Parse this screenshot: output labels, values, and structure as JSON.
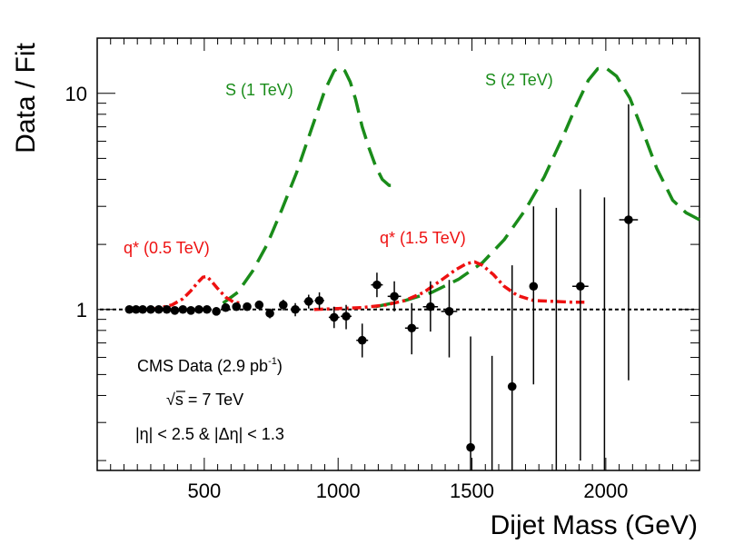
{
  "chart_data": {
    "type": "scatter",
    "ylabel": "Data / Fit",
    "xlabel": "Dijet Mass (GeV)",
    "xlim": [
      100,
      2350
    ],
    "ylim": [
      0.18,
      18
    ],
    "yscale": "log",
    "x_ticks": [
      500,
      1000,
      1500,
      2000
    ],
    "x_tick_labels": [
      "500",
      "1000",
      "1500",
      "2000"
    ],
    "y_ticks": [
      1,
      10
    ],
    "y_tick_labels": [
      "1",
      "10"
    ],
    "reference_line": 1,
    "info": {
      "line1_main": "CMS Data (2.9 pb",
      "line1_sup": "-1",
      "line1_end": ")",
      "line2_root": "√",
      "line2": "s = 7 TeV",
      "line3": "|η| < 2.5 & |Δη| < 1.3"
    },
    "data_points": [
      {
        "x": 220,
        "y": 1.0,
        "ylo": 0.99,
        "yhi": 1.01,
        "xerr": 0
      },
      {
        "x": 245,
        "y": 1.0,
        "ylo": 0.99,
        "yhi": 1.01,
        "xerr": 0
      },
      {
        "x": 270,
        "y": 1.0,
        "ylo": 0.99,
        "yhi": 1.01,
        "xerr": 0
      },
      {
        "x": 300,
        "y": 1.0,
        "ylo": 0.99,
        "yhi": 1.01,
        "xerr": 0
      },
      {
        "x": 330,
        "y": 1.0,
        "ylo": 0.99,
        "yhi": 1.01,
        "xerr": 0
      },
      {
        "x": 360,
        "y": 1.0,
        "ylo": 0.985,
        "yhi": 1.015,
        "xerr": 0
      },
      {
        "x": 390,
        "y": 0.99,
        "ylo": 0.975,
        "yhi": 1.005,
        "xerr": 0
      },
      {
        "x": 420,
        "y": 1.0,
        "ylo": 0.98,
        "yhi": 1.02,
        "xerr": 0
      },
      {
        "x": 450,
        "y": 0.99,
        "ylo": 0.97,
        "yhi": 1.01,
        "xerr": 0
      },
      {
        "x": 480,
        "y": 1.0,
        "ylo": 0.98,
        "yhi": 1.02,
        "xerr": 0
      },
      {
        "x": 510,
        "y": 1.0,
        "ylo": 0.98,
        "yhi": 1.02,
        "xerr": 0
      },
      {
        "x": 545,
        "y": 0.98,
        "ylo": 0.96,
        "yhi": 1.0,
        "xerr": 0
      },
      {
        "x": 580,
        "y": 1.02,
        "ylo": 0.99,
        "yhi": 1.05,
        "xerr": 0
      },
      {
        "x": 620,
        "y": 1.03,
        "ylo": 1.0,
        "yhi": 1.06,
        "xerr": 0
      },
      {
        "x": 660,
        "y": 1.03,
        "ylo": 0.99,
        "yhi": 1.07,
        "xerr": 0
      },
      {
        "x": 705,
        "y": 1.05,
        "ylo": 1.0,
        "yhi": 1.1,
        "xerr": 15
      },
      {
        "x": 745,
        "y": 0.96,
        "ylo": 0.91,
        "yhi": 1.01,
        "xerr": 15
      },
      {
        "x": 795,
        "y": 1.05,
        "ylo": 0.99,
        "yhi": 1.11,
        "xerr": 15
      },
      {
        "x": 840,
        "y": 1.0,
        "ylo": 0.93,
        "yhi": 1.07,
        "xerr": 15
      },
      {
        "x": 890,
        "y": 1.09,
        "ylo": 1.01,
        "yhi": 1.17,
        "xerr": 18
      },
      {
        "x": 930,
        "y": 1.1,
        "ylo": 1.0,
        "yhi": 1.2,
        "xerr": 18
      },
      {
        "x": 985,
        "y": 0.92,
        "ylo": 0.82,
        "yhi": 1.03,
        "xerr": 20
      },
      {
        "x": 1030,
        "y": 0.93,
        "ylo": 0.81,
        "yhi": 1.05,
        "xerr": 20
      },
      {
        "x": 1090,
        "y": 0.72,
        "ylo": 0.6,
        "yhi": 0.86,
        "xerr": 22
      },
      {
        "x": 1145,
        "y": 1.3,
        "ylo": 1.14,
        "yhi": 1.48,
        "xerr": 22
      },
      {
        "x": 1210,
        "y": 1.15,
        "ylo": 0.98,
        "yhi": 1.35,
        "xerr": 25
      },
      {
        "x": 1275,
        "y": 0.82,
        "ylo": 0.62,
        "yhi": 1.07,
        "xerr": 25
      },
      {
        "x": 1345,
        "y": 1.03,
        "ylo": 0.79,
        "yhi": 1.35,
        "xerr": 28
      },
      {
        "x": 1415,
        "y": 0.98,
        "ylo": 0.6,
        "yhi": 1.37,
        "xerr": 30
      },
      {
        "x": 1495,
        "y": 0.23,
        "ylo": 0.1,
        "yhi": 0.75,
        "xerr": 0
      },
      {
        "x": 1575,
        "y": 0.1,
        "ylo": 0.05,
        "yhi": 0.61,
        "xerr": 0
      },
      {
        "x": 1650,
        "y": 0.44,
        "ylo": 0.1,
        "yhi": 1.6,
        "xerr": 0
      },
      {
        "x": 1730,
        "y": 1.28,
        "ylo": 0.45,
        "yhi": 3.0,
        "xerr": 0
      },
      {
        "x": 1815,
        "y": 0.12,
        "ylo": 0.05,
        "yhi": 2.95,
        "xerr": 0
      },
      {
        "x": 1905,
        "y": 1.28,
        "ylo": 0.2,
        "yhi": 3.6,
        "xerr": 30
      },
      {
        "x": 1995,
        "y": 0.12,
        "ylo": 0.05,
        "yhi": 3.3,
        "xerr": 0
      },
      {
        "x": 2085,
        "y": 2.6,
        "ylo": 0.47,
        "yhi": 8.9,
        "xerr": 35
      }
    ],
    "signal_curves": [
      {
        "name": "S (1 TeV)",
        "color": "#1a8c1a",
        "dash": "20,10",
        "x": [
          570,
          625,
          680,
          735,
          790,
          845,
          900,
          950,
          985,
          1005,
          1025,
          1045,
          1065,
          1090,
          1115,
          1140,
          1165,
          1190,
          1210
        ],
        "y": [
          1.07,
          1.2,
          1.5,
          2.0,
          2.9,
          4.3,
          6.8,
          10.3,
          12.7,
          13.2,
          12.7,
          11.3,
          9.4,
          7.0,
          5.6,
          4.6,
          4.0,
          3.75,
          3.75
        ]
      },
      {
        "name": "S (2 TeV)",
        "color": "#1a8c1a",
        "dash": "20,10",
        "x": [
          1140,
          1250,
          1350,
          1450,
          1540,
          1620,
          1700,
          1770,
          1840,
          1890,
          1935,
          1970,
          2000,
          2040,
          2090,
          2140,
          2190,
          2250,
          2300,
          2350
        ],
        "y": [
          1.03,
          1.1,
          1.2,
          1.38,
          1.65,
          2.1,
          2.9,
          4.1,
          6.3,
          8.8,
          11.5,
          13.0,
          13.1,
          12.0,
          9.5,
          6.6,
          4.5,
          3.2,
          2.8,
          2.6
        ]
      },
      {
        "name": "q* (0.5 TeV)",
        "color": "#ee1111",
        "dash": "10,4,3,4",
        "x": [
          300,
          340,
          380,
          420,
          450,
          475,
          495,
          510,
          525,
          550,
          580,
          610,
          640
        ],
        "y": [
          1.0,
          1.02,
          1.05,
          1.12,
          1.22,
          1.33,
          1.41,
          1.42,
          1.36,
          1.25,
          1.14,
          1.08,
          1.07
        ]
      },
      {
        "name": "q* (1.5 TeV)",
        "color": "#ee1111",
        "dash": "10,4,3,4",
        "x": [
          910,
          1000,
          1090,
          1180,
          1250,
          1320,
          1390,
          1440,
          1480,
          1510,
          1540,
          1580,
          1620,
          1670,
          1730,
          1800,
          1880,
          1920
        ],
        "y": [
          1.0,
          1.01,
          1.02,
          1.05,
          1.1,
          1.2,
          1.38,
          1.53,
          1.63,
          1.66,
          1.6,
          1.45,
          1.28,
          1.16,
          1.1,
          1.09,
          1.08,
          1.08
        ]
      }
    ],
    "curve_labels": [
      {
        "text": "S (1 TeV)",
        "color": "#1a8c1a"
      },
      {
        "text": "S (2 TeV)",
        "color": "#1a8c1a"
      },
      {
        "text": "q* (0.5 TeV)",
        "color": "#ee1111"
      },
      {
        "text": "q* (1.5 TeV)",
        "color": "#ee1111"
      }
    ]
  }
}
